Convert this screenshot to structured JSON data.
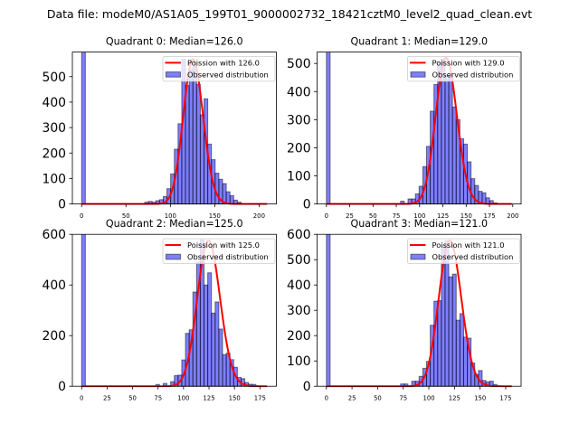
{
  "figure": {
    "suptitle": "Data file: modeM0/AS1A05_199T01_9000002732_18421cztM0_level2_quad_clean.evt"
  },
  "chart_data": [
    {
      "type": "bar",
      "title": "Quadrant 0: Median=126.0",
      "median": 126.0,
      "xlabel": "",
      "ylabel": "",
      "xlim": [
        -10.45,
        219.45
      ],
      "ylim": [
        0,
        596.4
      ],
      "xticks": [
        0,
        50,
        100,
        150,
        200
      ],
      "yticks": [
        0,
        100,
        200,
        300,
        400,
        500
      ],
      "grid": false,
      "bins": {
        "start": 0,
        "end": 209,
        "count": 50
      },
      "values": [
        null,
        0,
        0,
        0,
        0,
        0,
        0,
        0,
        0,
        0,
        0,
        0,
        0,
        0,
        0,
        0,
        0,
        7,
        10,
        7,
        13,
        17,
        29,
        60,
        118,
        215,
        315,
        568,
        465,
        528,
        540,
        470,
        350,
        413,
        235,
        174,
        121,
        97,
        80,
        48,
        33,
        15,
        7,
        0,
        0,
        0,
        0,
        0,
        0,
        0
      ],
      "overflow_bins": [
        0
      ],
      "poisson": {
        "lambda": 126,
        "peak": 568,
        "x_range": [
          0,
          209
        ]
      },
      "legend": {
        "position": "top-right",
        "entries": [
          {
            "label": "Poission with 126.0",
            "kind": "line",
            "color": "#ff0000"
          },
          {
            "label": "Observed distribution",
            "kind": "patch",
            "color": "#0000ff"
          }
        ]
      }
    },
    {
      "type": "bar",
      "title": "Quadrant 1: Median=129.0",
      "median": 129.0,
      "xlabel": "",
      "ylabel": "",
      "xlim": [
        -9.95,
        208.95
      ],
      "ylim": [
        0,
        540.5
      ],
      "xticks": [
        0,
        25,
        50,
        75,
        100,
        125,
        150,
        175,
        200
      ],
      "yticks": [
        0,
        100,
        200,
        300,
        400,
        500
      ],
      "grid": false,
      "bins": {
        "start": 0,
        "end": 199,
        "count": 50
      },
      "values": [
        null,
        0,
        0,
        0,
        0,
        0,
        0,
        0,
        0,
        0,
        0,
        0,
        0,
        0,
        0,
        0,
        0,
        0,
        0,
        0,
        10,
        0,
        18,
        18,
        36,
        63,
        133,
        205,
        330,
        425,
        505,
        515,
        458,
        455,
        345,
        300,
        232,
        213,
        150,
        90,
        66,
        45,
        40,
        22,
        12,
        4,
        0,
        0,
        0,
        0
      ],
      "overflow_bins": [
        0
      ],
      "poisson": {
        "lambda": 129,
        "peak": 520,
        "x_range": [
          0,
          199
        ]
      },
      "legend": {
        "position": "top-right",
        "entries": [
          {
            "label": "Poission with 129.0",
            "kind": "line",
            "color": "#ff0000"
          },
          {
            "label": "Observed distribution",
            "kind": "patch",
            "color": "#0000ff"
          }
        ]
      }
    },
    {
      "type": "bar",
      "title": "Quadrant 2: Median=125.0",
      "median": 125.0,
      "xlabel": "",
      "ylabel": "",
      "xlim": [
        -9.1,
        191.1
      ],
      "ylim": [
        0,
        600
      ],
      "xticks": [
        0,
        25,
        50,
        75,
        100,
        125,
        150,
        175
      ],
      "yticks": [
        0,
        200,
        400,
        600
      ],
      "grid": false,
      "bins": {
        "start": 0,
        "end": 182,
        "count": 50
      },
      "values": [
        null,
        0,
        0,
        0,
        0,
        0,
        0,
        0,
        0,
        0,
        0,
        0,
        0,
        0,
        0,
        0,
        0,
        0,
        0,
        0,
        7,
        0,
        11,
        0,
        18,
        42,
        44,
        104,
        209,
        223,
        372,
        490,
        578,
        400,
        448,
        289,
        333,
        226,
        125,
        131,
        105,
        75,
        35,
        30,
        15,
        8,
        7,
        0,
        0,
        0
      ],
      "overflow_bins": [
        0
      ],
      "poisson": {
        "lambda": 125,
        "peak": 575,
        "x_range": [
          0,
          182
        ]
      },
      "legend": {
        "position": "top-right",
        "entries": [
          {
            "label": "Poission with 125.0",
            "kind": "line",
            "color": "#ff0000"
          },
          {
            "label": "Observed distribution",
            "kind": "patch",
            "color": "#0000ff"
          }
        ]
      }
    },
    {
      "type": "bar",
      "title": "Quadrant 3: Median=121.0",
      "median": 121.0,
      "xlabel": "",
      "ylabel": "",
      "xlim": [
        -9.05,
        190.05
      ],
      "ylim": [
        0,
        600
      ],
      "xticks": [
        0,
        25,
        50,
        75,
        100,
        125,
        150,
        175
      ],
      "yticks": [
        0,
        100,
        200,
        300,
        400,
        500,
        600
      ],
      "grid": false,
      "bins": {
        "start": 0,
        "end": 181,
        "count": 50
      },
      "values": [
        null,
        0,
        0,
        0,
        0,
        0,
        0,
        0,
        0,
        0,
        0,
        0,
        0,
        0,
        0,
        0,
        0,
        0,
        0,
        0,
        9,
        9,
        0,
        20,
        20,
        39,
        71,
        98,
        241,
        336,
        338,
        555,
        575,
        432,
        443,
        261,
        287,
        194,
        190,
        92,
        47,
        62,
        23,
        17,
        20,
        7,
        0,
        0,
        0,
        0
      ],
      "overflow_bins": [
        0
      ],
      "poisson": {
        "lambda": 121,
        "peak": 575,
        "x_range": [
          0,
          181
        ]
      },
      "legend": {
        "position": "top-right",
        "entries": [
          {
            "label": "Poission with 121.0",
            "kind": "line",
            "color": "#ff0000"
          },
          {
            "label": "Observed distribution",
            "kind": "patch",
            "color": "#0000ff"
          }
        ]
      }
    }
  ]
}
